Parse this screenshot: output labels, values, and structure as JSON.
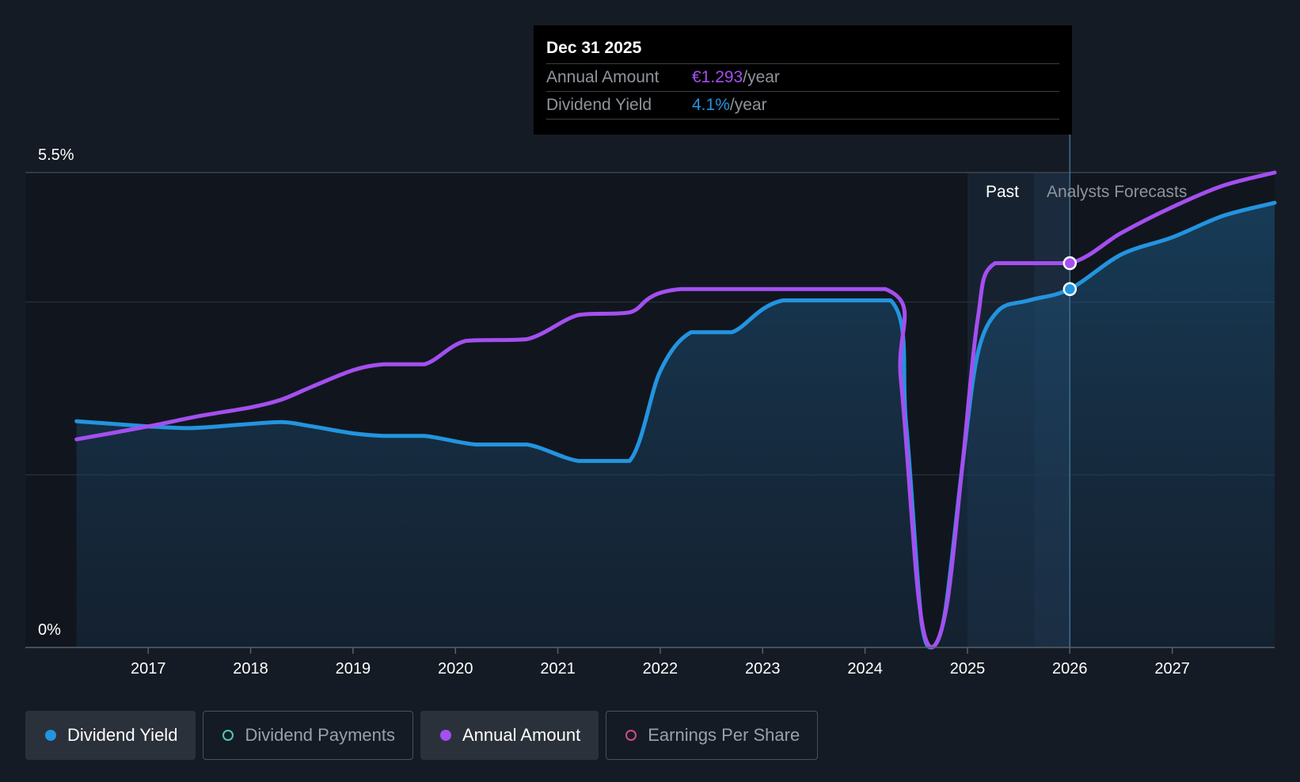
{
  "colors": {
    "background": "#151b24",
    "yield": "#2394df",
    "annual": "#a44ff0",
    "payments": "#4fc7b9",
    "eps": "#d04c86",
    "tooltip_bg": "#000000"
  },
  "tooltip": {
    "date": "Dec 31 2025",
    "rows": [
      {
        "name": "Annual Amount",
        "value": "€1.293",
        "unit": "/year",
        "color": "#a44ff0"
      },
      {
        "name": "Dividend Yield",
        "value": "4.1%",
        "unit": "/year",
        "color": "#2394df"
      }
    ]
  },
  "regions": {
    "past_label": "Past",
    "forecast_label": "Analysts Forecasts"
  },
  "legend": [
    {
      "label": "Dividend Yield",
      "color": "#2394df",
      "active": true,
      "filled": true
    },
    {
      "label": "Dividend Payments",
      "color": "#4fc7b9",
      "active": false,
      "filled": false
    },
    {
      "label": "Annual Amount",
      "color": "#a44ff0",
      "active": true,
      "filled": true
    },
    {
      "label": "Earnings Per Share",
      "color": "#d04c86",
      "active": false,
      "filled": false
    }
  ],
  "chart_data": {
    "type": "line",
    "title": "",
    "xlabel": "",
    "ylabel": "",
    "x_ticks": [
      "2017",
      "2018",
      "2019",
      "2020",
      "2021",
      "2022",
      "2023",
      "2024",
      "2025",
      "2026",
      "2027"
    ],
    "x_tick_values": [
      2017,
      2018,
      2019,
      2020,
      2021,
      2022,
      2023,
      2024,
      2025,
      2026,
      2027
    ],
    "xlim": [
      2015.8,
      2028.0
    ],
    "y_ticks": [
      "0%",
      "5.5%"
    ],
    "y_tick_values": [
      0,
      5.5
    ],
    "ylim": [
      0,
      5.5
    ],
    "grid": true,
    "past_region": [
      2025.0,
      2025.65
    ],
    "forecast_region": [
      2025.65,
      2026.0
    ],
    "cursor_x": 2026.0,
    "series": [
      {
        "name": "Dividend Yield",
        "color": "#2394df",
        "fill": true,
        "points": [
          [
            2016.3,
            2.62
          ],
          [
            2017.0,
            2.56
          ],
          [
            2017.4,
            2.54
          ],
          [
            2017.9,
            2.58
          ],
          [
            2018.3,
            2.61
          ],
          [
            2018.6,
            2.56
          ],
          [
            2019.0,
            2.48
          ],
          [
            2019.3,
            2.45
          ],
          [
            2019.7,
            2.45
          ],
          [
            2020.2,
            2.35
          ],
          [
            2020.7,
            2.35
          ],
          [
            2021.2,
            2.16
          ],
          [
            2021.7,
            2.16
          ],
          [
            2022.0,
            3.2
          ],
          [
            2022.3,
            3.65
          ],
          [
            2022.7,
            3.65
          ],
          [
            2023.2,
            4.02
          ],
          [
            2024.25,
            4.02
          ],
          [
            2024.4,
            2.6
          ],
          [
            2024.55,
            0.3
          ],
          [
            2024.65,
            0.0
          ],
          [
            2024.78,
            0.4
          ],
          [
            2024.95,
            2.1
          ],
          [
            2025.1,
            3.4
          ],
          [
            2025.3,
            3.9
          ],
          [
            2025.6,
            4.02
          ],
          [
            2026.0,
            4.15
          ],
          [
            2026.5,
            4.55
          ],
          [
            2027.0,
            4.75
          ],
          [
            2027.5,
            5.0
          ],
          [
            2028.0,
            5.15
          ]
        ]
      },
      {
        "name": "Annual Amount",
        "color": "#a44ff0",
        "fill": false,
        "points": [
          [
            2016.3,
            2.41
          ],
          [
            2017.0,
            2.56
          ],
          [
            2017.5,
            2.68
          ],
          [
            2018.0,
            2.78
          ],
          [
            2018.3,
            2.87
          ],
          [
            2018.6,
            3.02
          ],
          [
            2019.0,
            3.21
          ],
          [
            2019.3,
            3.28
          ],
          [
            2019.7,
            3.28
          ],
          [
            2020.1,
            3.55
          ],
          [
            2020.7,
            3.57
          ],
          [
            2021.2,
            3.85
          ],
          [
            2021.7,
            3.88
          ],
          [
            2022.2,
            4.15
          ],
          [
            2024.2,
            4.15
          ],
          [
            2024.35,
            3.1
          ],
          [
            2024.52,
            0.6
          ],
          [
            2024.65,
            0.0
          ],
          [
            2024.8,
            0.5
          ],
          [
            2024.95,
            2.1
          ],
          [
            2025.1,
            3.8
          ],
          [
            2025.27,
            4.45
          ],
          [
            2026.0,
            4.45
          ],
          [
            2026.5,
            4.8
          ],
          [
            2027.0,
            5.1
          ],
          [
            2027.5,
            5.35
          ],
          [
            2028.0,
            5.5
          ]
        ]
      }
    ],
    "highlight_points": [
      {
        "series": "Annual Amount",
        "x": 2026.0,
        "y": 4.45
      },
      {
        "series": "Dividend Yield",
        "x": 2026.0,
        "y": 4.15
      }
    ]
  }
}
